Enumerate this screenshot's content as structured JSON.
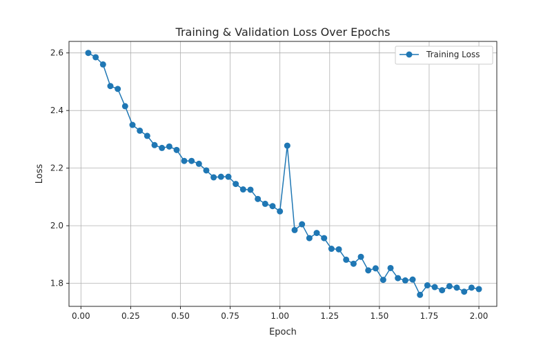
{
  "chart_data": {
    "type": "line",
    "title": "Training & Validation Loss Over Epochs",
    "xlabel": "Epoch",
    "ylabel": "Loss",
    "xlim": [
      -0.06,
      2.09
    ],
    "ylim": [
      1.72,
      2.64
    ],
    "xticks": [
      0.0,
      0.25,
      0.5,
      0.75,
      1.0,
      1.25,
      1.5,
      1.75,
      2.0
    ],
    "xtick_labels": [
      "0.00",
      "0.25",
      "0.50",
      "0.75",
      "1.00",
      "1.25",
      "1.50",
      "1.75",
      "2.00"
    ],
    "yticks": [
      1.8,
      2.0,
      2.2,
      2.4,
      2.6
    ],
    "ytick_labels": [
      "1.8",
      "2.0",
      "2.2",
      "2.4",
      "2.6"
    ],
    "grid": true,
    "legend_position": "top-right",
    "series": [
      {
        "name": "Training Loss",
        "color": "#1f77b4",
        "marker": "circle",
        "x": [
          0.037,
          0.074,
          0.111,
          0.148,
          0.185,
          0.222,
          0.259,
          0.296,
          0.333,
          0.37,
          0.407,
          0.444,
          0.481,
          0.519,
          0.556,
          0.593,
          0.63,
          0.667,
          0.704,
          0.741,
          0.778,
          0.815,
          0.852,
          0.889,
          0.926,
          0.963,
          1.0,
          1.037,
          1.074,
          1.111,
          1.148,
          1.185,
          1.222,
          1.259,
          1.296,
          1.333,
          1.37,
          1.407,
          1.444,
          1.481,
          1.519,
          1.556,
          1.593,
          1.63,
          1.667,
          1.704,
          1.741,
          1.778,
          1.815,
          1.852,
          1.889,
          1.926,
          1.963,
          2.0
        ],
        "y": [
          2.6,
          2.585,
          2.56,
          2.485,
          2.475,
          2.415,
          2.35,
          2.33,
          2.312,
          2.28,
          2.27,
          2.275,
          2.263,
          2.225,
          2.225,
          2.215,
          2.192,
          2.168,
          2.17,
          2.17,
          2.145,
          2.126,
          2.125,
          2.093,
          2.076,
          2.068,
          2.05,
          2.278,
          1.985,
          2.005,
          1.957,
          1.975,
          1.957,
          1.92,
          1.918,
          1.882,
          1.868,
          1.892,
          1.845,
          1.852,
          1.812,
          1.853,
          1.818,
          1.81,
          1.813,
          1.76,
          1.793,
          1.787,
          1.776,
          1.79,
          1.785,
          1.771,
          1.785,
          1.78
        ]
      }
    ]
  }
}
